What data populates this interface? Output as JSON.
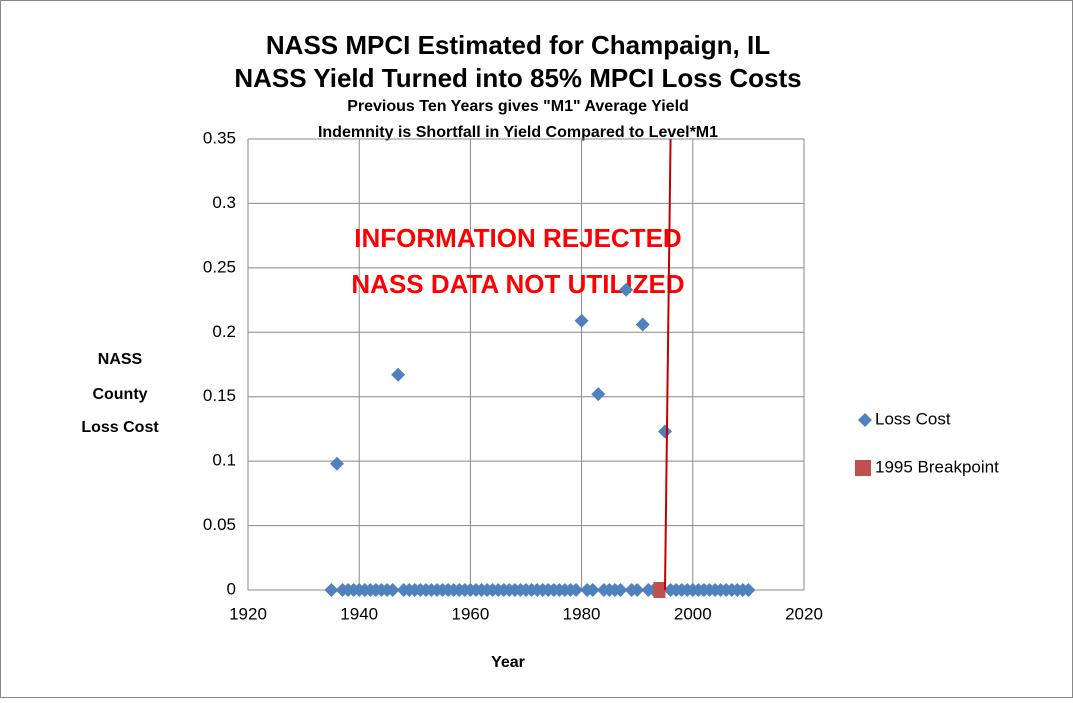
{
  "chart_data": {
    "type": "scatter",
    "title": [
      "NASS MPCI Estimated for Champaign, IL",
      "NASS Yield Turned into 85% MPCI Loss Costs"
    ],
    "subtitle": [
      "Previous Ten Years gives \"M1\" Average Yield",
      "Indemnity is Shortfall in Yield Compared to Level*M1"
    ],
    "xlabel": "Year",
    "ylabel": [
      "NASS",
      "County",
      "Loss Cost"
    ],
    "annotations": [
      "INFORMATION REJECTED",
      "NASS DATA NOT UTILIZED"
    ],
    "xlim": [
      1920,
      2020
    ],
    "xticks": [
      1920,
      1940,
      1960,
      1980,
      2000,
      2020
    ],
    "ylim": [
      0,
      0.35
    ],
    "yticks": [
      0,
      0.05,
      0.1,
      0.15,
      0.2,
      0.25,
      0.3,
      0.35
    ],
    "grid": true,
    "legend": "right",
    "series": [
      {
        "name": "Loss Cost",
        "color": "#4f81bd",
        "marker": "diamond",
        "x": [
          1935,
          1936,
          1937,
          1938,
          1939,
          1940,
          1941,
          1942,
          1943,
          1944,
          1945,
          1946,
          1947,
          1948,
          1949,
          1950,
          1951,
          1952,
          1953,
          1954,
          1955,
          1956,
          1957,
          1958,
          1959,
          1960,
          1961,
          1962,
          1963,
          1964,
          1965,
          1966,
          1967,
          1968,
          1969,
          1970,
          1971,
          1972,
          1973,
          1974,
          1975,
          1976,
          1977,
          1978,
          1979,
          1980,
          1981,
          1982,
          1983,
          1984,
          1985,
          1986,
          1987,
          1988,
          1989,
          1990,
          1991,
          1992,
          1993,
          1994,
          1995,
          1996,
          1997,
          1998,
          1999,
          2000,
          2001,
          2002,
          2003,
          2004,
          2005,
          2006,
          2007,
          2008,
          2009,
          2010
        ],
        "values": [
          0,
          0.098,
          0,
          0,
          0,
          0,
          0,
          0,
          0,
          0,
          0,
          0,
          0.167,
          0,
          0,
          0,
          0,
          0,
          0,
          0,
          0,
          0,
          0,
          0,
          0,
          0,
          0,
          0,
          0,
          0,
          0,
          0,
          0,
          0,
          0,
          0,
          0,
          0,
          0,
          0,
          0,
          0,
          0,
          0,
          0,
          0.209,
          0,
          0,
          0.152,
          0,
          0,
          0,
          0,
          0.233,
          0,
          0,
          0.206,
          0,
          0,
          0,
          0.123,
          0,
          0,
          0,
          0,
          0,
          0,
          0,
          0,
          0,
          0,
          0,
          0,
          0,
          0,
          0
        ]
      },
      {
        "name": "1995 Breakpoint",
        "color": "#c0504d",
        "marker": "square",
        "x": [
          1994
        ],
        "values": [
          0
        ]
      }
    ],
    "breakpoint_line": {
      "color": "#c00000",
      "x": [
        1995,
        1996
      ],
      "values": [
        0,
        0.35
      ]
    }
  }
}
